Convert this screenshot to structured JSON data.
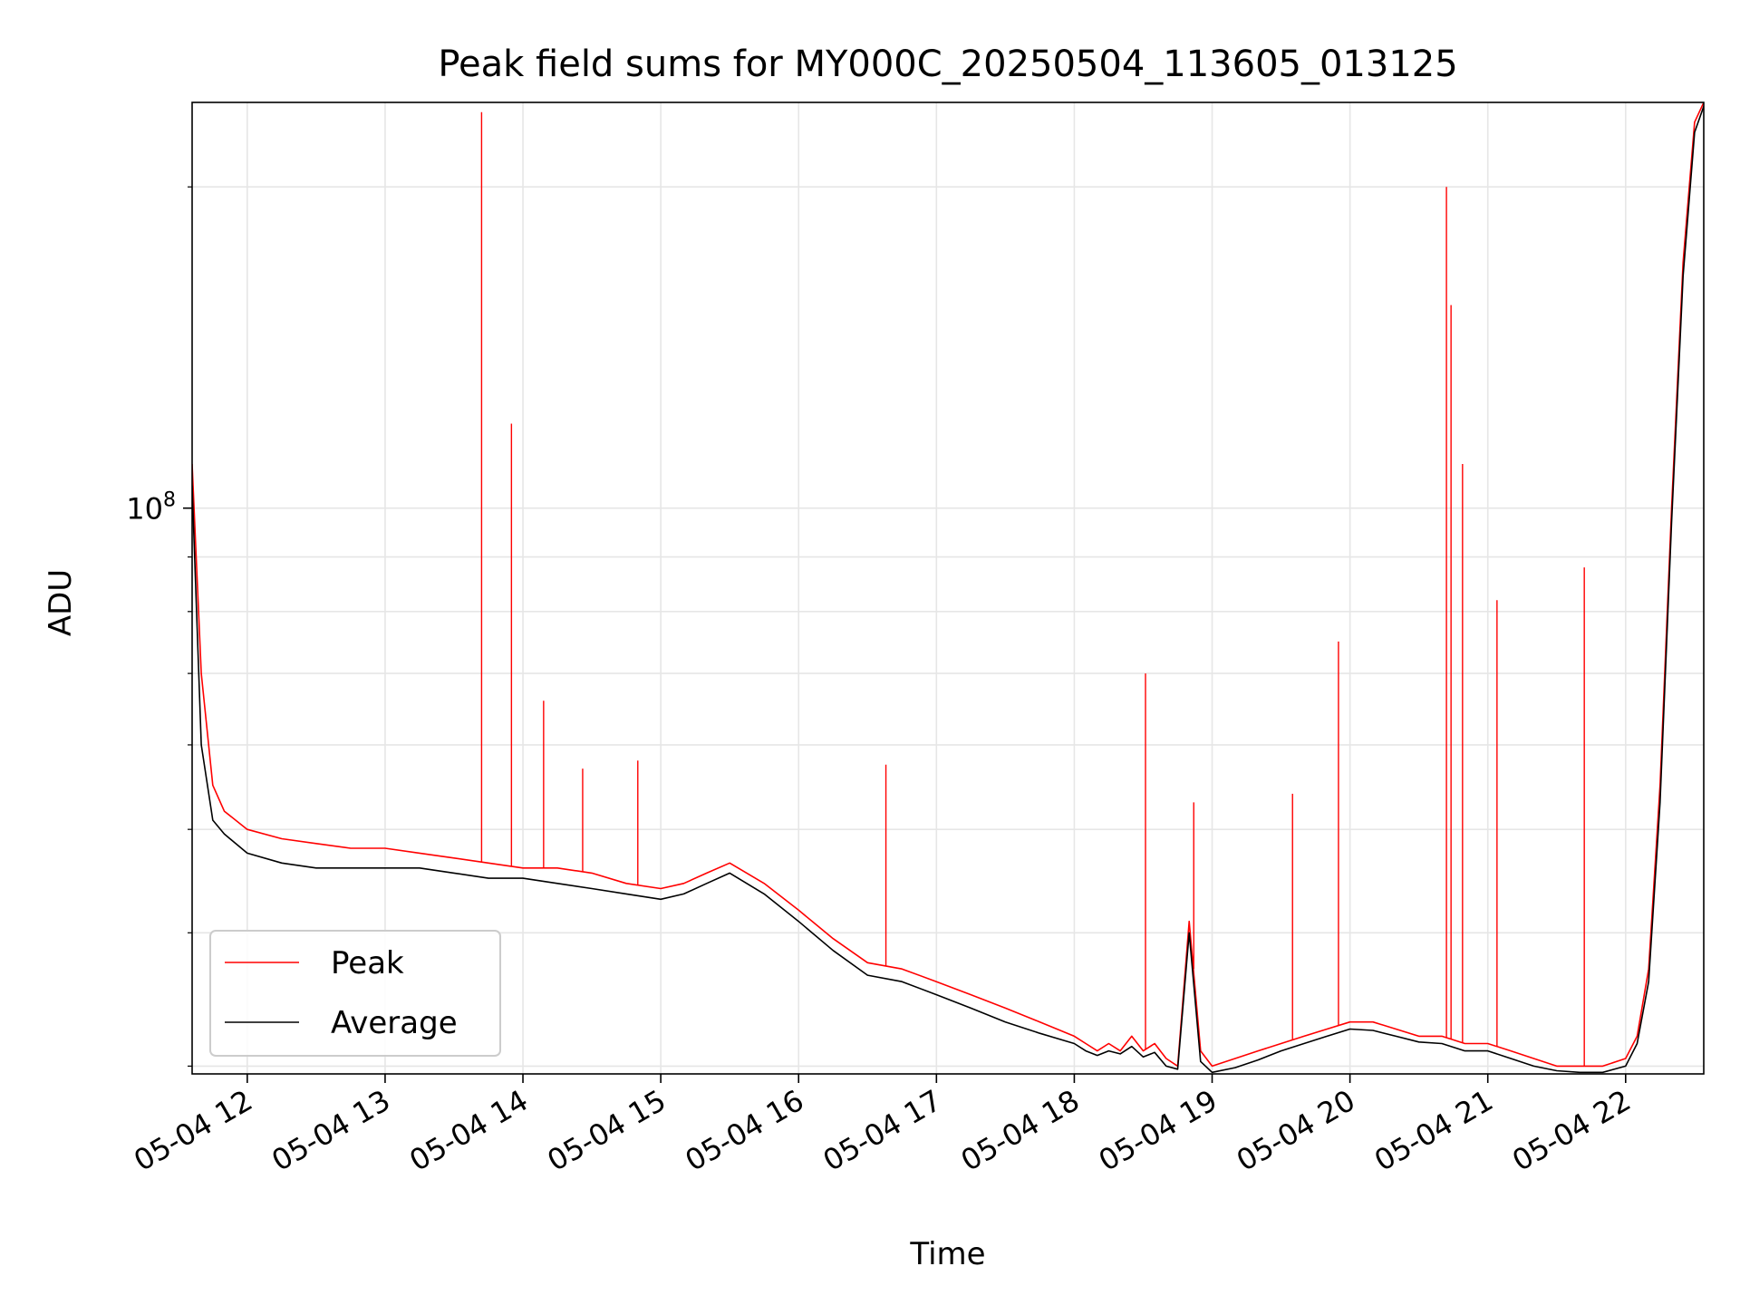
{
  "chart_data": {
    "type": "line",
    "title": "Peak field sums for MY000C_20250504_113605_013125",
    "xlabel": "Time",
    "ylabel": "ADU",
    "y_scale": "log",
    "ylim": [
      29500000,
      240000000
    ],
    "y_tick_label": "10^8",
    "y_tick_value": 100000000,
    "xlim": [
      "2025-05-04 11:36",
      "2025-05-04 22:34"
    ],
    "x_ticks": [
      "2025-05-04 12:00",
      "2025-05-04 13:00",
      "2025-05-04 14:00",
      "2025-05-04 15:00",
      "2025-05-04 16:00",
      "2025-05-04 17:00",
      "2025-05-04 18:00",
      "2025-05-04 19:00",
      "2025-05-04 20:00",
      "2025-05-04 21:00",
      "2025-05-04 22:00"
    ],
    "x_tick_labels": [
      "05-04 12",
      "05-04 13",
      "05-04 14",
      "05-04 15",
      "05-04 16",
      "05-04 17",
      "05-04 18",
      "05-04 19",
      "05-04 20",
      "05-04 21",
      "05-04 22"
    ],
    "grid": true,
    "legend_position": "lower-left",
    "series": [
      {
        "name": "Peak",
        "color": "#ff0000",
        "x": [
          "2025-05-04 11:36",
          "2025-05-04 11:40",
          "2025-05-04 11:45",
          "2025-05-04 11:50",
          "2025-05-04 12:00",
          "2025-05-04 12:15",
          "2025-05-04 12:30",
          "2025-05-04 12:45",
          "2025-05-04 13:00",
          "2025-05-04 13:15",
          "2025-05-04 13:30",
          "2025-05-04 13:45",
          "2025-05-04 14:00",
          "2025-05-04 14:15",
          "2025-05-04 14:30",
          "2025-05-04 14:45",
          "2025-05-04 15:00",
          "2025-05-04 15:10",
          "2025-05-04 15:20",
          "2025-05-04 15:30",
          "2025-05-04 15:45",
          "2025-05-04 16:00",
          "2025-05-04 16:15",
          "2025-05-04 16:30",
          "2025-05-04 16:45",
          "2025-05-04 17:00",
          "2025-05-04 17:15",
          "2025-05-04 17:30",
          "2025-05-04 17:45",
          "2025-05-04 18:00",
          "2025-05-04 18:05",
          "2025-05-04 18:10",
          "2025-05-04 18:15",
          "2025-05-04 18:20",
          "2025-05-04 18:25",
          "2025-05-04 18:30",
          "2025-05-04 18:35",
          "2025-05-04 18:40",
          "2025-05-04 18:45",
          "2025-05-04 18:50",
          "2025-05-04 18:55",
          "2025-05-04 19:00",
          "2025-05-04 19:10",
          "2025-05-04 19:20",
          "2025-05-04 19:30",
          "2025-05-04 19:40",
          "2025-05-04 19:50",
          "2025-05-04 20:00",
          "2025-05-04 20:10",
          "2025-05-04 20:20",
          "2025-05-04 20:30",
          "2025-05-04 20:40",
          "2025-05-04 20:50",
          "2025-05-04 21:00",
          "2025-05-04 21:10",
          "2025-05-04 21:20",
          "2025-05-04 21:30",
          "2025-05-04 21:40",
          "2025-05-04 21:50",
          "2025-05-04 22:00",
          "2025-05-04 22:05",
          "2025-05-04 22:10",
          "2025-05-04 22:15",
          "2025-05-04 22:20",
          "2025-05-04 22:25",
          "2025-05-04 22:30",
          "2025-05-04 22:34"
        ],
        "y": [
          110000000,
          70000000,
          55000000,
          52000000,
          50000000,
          49000000,
          48500000,
          48000000,
          48000000,
          47500000,
          47000000,
          46500000,
          46000000,
          46000000,
          45500000,
          44500000,
          44000000,
          44500000,
          45500000,
          46500000,
          44500000,
          42000000,
          39500000,
          37500000,
          37000000,
          36000000,
          35000000,
          34000000,
          33000000,
          32000000,
          31500000,
          31000000,
          31500000,
          31000000,
          32000000,
          31000000,
          31500000,
          30500000,
          30000000,
          41000000,
          31000000,
          30000000,
          30500000,
          31000000,
          31500000,
          32000000,
          32500000,
          33000000,
          33000000,
          32500000,
          32000000,
          32000000,
          31500000,
          31500000,
          31000000,
          30500000,
          30000000,
          30000000,
          30000000,
          30500000,
          32000000,
          37000000,
          55000000,
          100000000,
          170000000,
          230000000,
          240000000
        ],
        "spikes": [
          {
            "x": "2025-05-04 13:42",
            "y": 235000000
          },
          {
            "x": "2025-05-04 13:55",
            "y": 120000000
          },
          {
            "x": "2025-05-04 14:09",
            "y": 66000000
          },
          {
            "x": "2025-05-04 14:26",
            "y": 57000000
          },
          {
            "x": "2025-05-04 14:50",
            "y": 58000000
          },
          {
            "x": "2025-05-04 16:38",
            "y": 57500000
          },
          {
            "x": "2025-05-04 18:31",
            "y": 70000000
          },
          {
            "x": "2025-05-04 18:52",
            "y": 53000000
          },
          {
            "x": "2025-05-04 19:35",
            "y": 54000000
          },
          {
            "x": "2025-05-04 19:55",
            "y": 75000000
          },
          {
            "x": "2025-05-04 20:42",
            "y": 200000000
          },
          {
            "x": "2025-05-04 20:44",
            "y": 155000000
          },
          {
            "x": "2025-05-04 20:49",
            "y": 110000000
          },
          {
            "x": "2025-05-04 21:04",
            "y": 82000000
          },
          {
            "x": "2025-05-04 21:42",
            "y": 88000000
          }
        ]
      },
      {
        "name": "Average",
        "color": "#000000",
        "x": [
          "2025-05-04 11:36",
          "2025-05-04 11:40",
          "2025-05-04 11:45",
          "2025-05-04 11:50",
          "2025-05-04 12:00",
          "2025-05-04 12:15",
          "2025-05-04 12:30",
          "2025-05-04 12:45",
          "2025-05-04 13:00",
          "2025-05-04 13:15",
          "2025-05-04 13:30",
          "2025-05-04 13:45",
          "2025-05-04 14:00",
          "2025-05-04 14:15",
          "2025-05-04 14:30",
          "2025-05-04 14:45",
          "2025-05-04 15:00",
          "2025-05-04 15:10",
          "2025-05-04 15:20",
          "2025-05-04 15:30",
          "2025-05-04 15:45",
          "2025-05-04 16:00",
          "2025-05-04 16:15",
          "2025-05-04 16:30",
          "2025-05-04 16:45",
          "2025-05-04 17:00",
          "2025-05-04 17:15",
          "2025-05-04 17:30",
          "2025-05-04 17:45",
          "2025-05-04 18:00",
          "2025-05-04 18:05",
          "2025-05-04 18:10",
          "2025-05-04 18:15",
          "2025-05-04 18:20",
          "2025-05-04 18:25",
          "2025-05-04 18:30",
          "2025-05-04 18:35",
          "2025-05-04 18:40",
          "2025-05-04 18:45",
          "2025-05-04 18:50",
          "2025-05-04 18:55",
          "2025-05-04 19:00",
          "2025-05-04 19:10",
          "2025-05-04 19:20",
          "2025-05-04 19:30",
          "2025-05-04 19:40",
          "2025-05-04 19:50",
          "2025-05-04 20:00",
          "2025-05-04 20:10",
          "2025-05-04 20:20",
          "2025-05-04 20:30",
          "2025-05-04 20:40",
          "2025-05-04 20:50",
          "2025-05-04 21:00",
          "2025-05-04 21:10",
          "2025-05-04 21:20",
          "2025-05-04 21:30",
          "2025-05-04 21:40",
          "2025-05-04 21:50",
          "2025-05-04 22:00",
          "2025-05-04 22:05",
          "2025-05-04 22:10",
          "2025-05-04 22:15",
          "2025-05-04 22:20",
          "2025-05-04 22:25",
          "2025-05-04 22:30",
          "2025-05-04 22:34"
        ],
        "y": [
          105000000,
          60000000,
          51000000,
          49500000,
          47500000,
          46500000,
          46000000,
          46000000,
          46000000,
          46000000,
          45500000,
          45000000,
          45000000,
          44500000,
          44000000,
          43500000,
          43000000,
          43500000,
          44500000,
          45500000,
          43500000,
          41000000,
          38500000,
          36500000,
          36000000,
          35000000,
          34000000,
          33000000,
          32200000,
          31500000,
          31000000,
          30700000,
          31000000,
          30800000,
          31300000,
          30600000,
          30900000,
          30000000,
          29800000,
          40000000,
          30300000,
          29600000,
          29900000,
          30400000,
          31000000,
          31500000,
          32000000,
          32500000,
          32400000,
          32000000,
          31600000,
          31500000,
          31000000,
          31000000,
          30500000,
          30000000,
          29700000,
          29600000,
          29600000,
          30000000,
          31500000,
          36000000,
          53000000,
          97000000,
          165000000,
          225000000,
          238000000
        ]
      }
    ]
  }
}
